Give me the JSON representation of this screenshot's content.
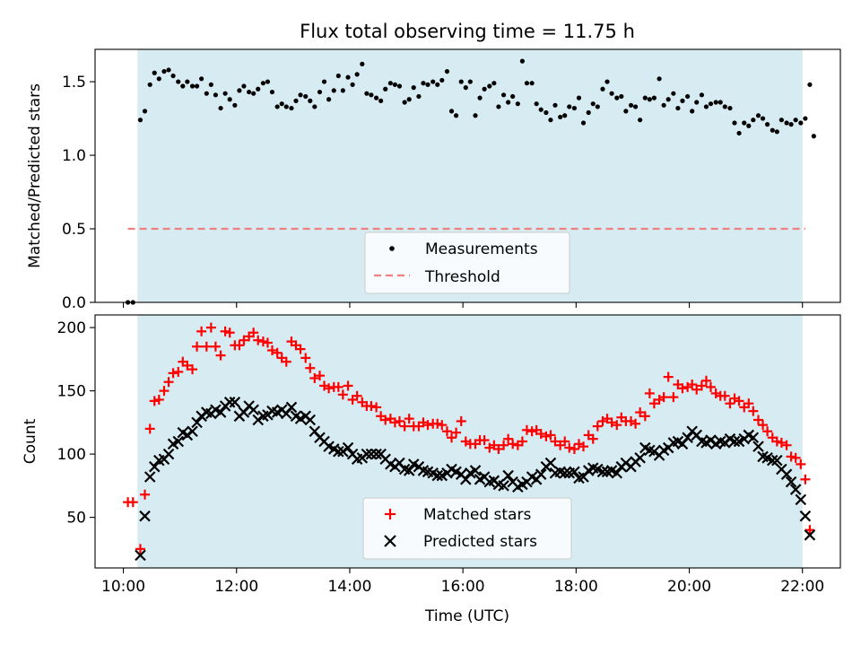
{
  "chart_data": [
    {
      "type": "scatter",
      "title": "Flux total observing time = 11.75 h",
      "ylabel": "Matched/Predicted stars",
      "xlim": [
        9.5,
        22.67
      ],
      "ylim": [
        0.0,
        1.72
      ],
      "yticks": [
        0.0,
        0.5,
        1.0,
        1.5
      ],
      "shaded_span": [
        10.25,
        22.0
      ],
      "shade_color": "#add8e6",
      "legend_position": "lower-center",
      "series": [
        {
          "name": "Measurements",
          "marker": "dot",
          "color": "#000000",
          "points": [
            [
              10.08,
              0.0
            ],
            [
              10.17,
              0.0
            ],
            [
              10.3,
              1.24
            ],
            [
              10.38,
              1.3
            ],
            [
              10.47,
              1.48
            ],
            [
              10.55,
              1.56
            ],
            [
              10.63,
              1.52
            ],
            [
              10.72,
              1.57
            ],
            [
              10.8,
              1.58
            ],
            [
              10.88,
              1.54
            ],
            [
              10.97,
              1.5
            ],
            [
              11.05,
              1.47
            ],
            [
              11.13,
              1.5
            ],
            [
              11.22,
              1.47
            ],
            [
              11.3,
              1.47
            ],
            [
              11.38,
              1.52
            ],
            [
              11.47,
              1.42
            ],
            [
              11.55,
              1.48
            ],
            [
              11.63,
              1.41
            ],
            [
              11.72,
              1.32
            ],
            [
              11.8,
              1.42
            ],
            [
              11.88,
              1.38
            ],
            [
              11.97,
              1.34
            ],
            [
              12.05,
              1.44
            ],
            [
              12.13,
              1.47
            ],
            [
              12.22,
              1.43
            ],
            [
              12.3,
              1.42
            ],
            [
              12.38,
              1.45
            ],
            [
              12.47,
              1.49
            ],
            [
              12.55,
              1.5
            ],
            [
              12.63,
              1.43
            ],
            [
              12.72,
              1.33
            ],
            [
              12.8,
              1.35
            ],
            [
              12.88,
              1.33
            ],
            [
              12.97,
              1.32
            ],
            [
              13.05,
              1.37
            ],
            [
              13.13,
              1.41
            ],
            [
              13.22,
              1.4
            ],
            [
              13.3,
              1.37
            ],
            [
              13.38,
              1.33
            ],
            [
              13.47,
              1.43
            ],
            [
              13.55,
              1.5
            ],
            [
              13.63,
              1.38
            ],
            [
              13.72,
              1.44
            ],
            [
              13.8,
              1.54
            ],
            [
              13.88,
              1.44
            ],
            [
              13.97,
              1.53
            ],
            [
              14.05,
              1.48
            ],
            [
              14.13,
              1.55
            ],
            [
              14.22,
              1.62
            ],
            [
              14.3,
              1.42
            ],
            [
              14.38,
              1.41
            ],
            [
              14.47,
              1.39
            ],
            [
              14.55,
              1.37
            ],
            [
              14.63,
              1.45
            ],
            [
              14.72,
              1.49
            ],
            [
              14.8,
              1.48
            ],
            [
              14.88,
              1.47
            ],
            [
              14.97,
              1.36
            ],
            [
              15.05,
              1.38
            ],
            [
              15.13,
              1.46
            ],
            [
              15.22,
              1.4
            ],
            [
              15.3,
              1.49
            ],
            [
              15.38,
              1.48
            ],
            [
              15.47,
              1.5
            ],
            [
              15.55,
              1.48
            ],
            [
              15.63,
              1.51
            ],
            [
              15.72,
              1.57
            ],
            [
              15.8,
              1.3
            ],
            [
              15.88,
              1.27
            ],
            [
              15.97,
              1.5
            ],
            [
              16.05,
              1.46
            ],
            [
              16.13,
              1.5
            ],
            [
              16.22,
              1.27
            ],
            [
              16.3,
              1.39
            ],
            [
              16.38,
              1.45
            ],
            [
              16.47,
              1.47
            ],
            [
              16.55,
              1.49
            ],
            [
              16.63,
              1.33
            ],
            [
              16.72,
              1.41
            ],
            [
              16.8,
              1.36
            ],
            [
              16.88,
              1.4
            ],
            [
              16.97,
              1.35
            ],
            [
              17.05,
              1.64
            ],
            [
              17.13,
              1.49
            ],
            [
              17.22,
              1.49
            ],
            [
              17.3,
              1.35
            ],
            [
              17.38,
              1.31
            ],
            [
              17.47,
              1.29
            ],
            [
              17.55,
              1.24
            ],
            [
              17.63,
              1.34
            ],
            [
              17.72,
              1.26
            ],
            [
              17.8,
              1.27
            ],
            [
              17.88,
              1.33
            ],
            [
              17.97,
              1.32
            ],
            [
              18.05,
              1.39
            ],
            [
              18.13,
              1.22
            ],
            [
              18.22,
              1.29
            ],
            [
              18.3,
              1.35
            ],
            [
              18.38,
              1.33
            ],
            [
              18.47,
              1.45
            ],
            [
              18.55,
              1.5
            ],
            [
              18.63,
              1.42
            ],
            [
              18.72,
              1.39
            ],
            [
              18.8,
              1.4
            ],
            [
              18.88,
              1.3
            ],
            [
              18.97,
              1.34
            ],
            [
              19.05,
              1.33
            ],
            [
              19.13,
              1.24
            ],
            [
              19.22,
              1.39
            ],
            [
              19.3,
              1.38
            ],
            [
              19.38,
              1.39
            ],
            [
              19.47,
              1.52
            ],
            [
              19.55,
              1.34
            ],
            [
              19.63,
              1.38
            ],
            [
              19.72,
              1.42
            ],
            [
              19.8,
              1.32
            ],
            [
              19.88,
              1.37
            ],
            [
              19.97,
              1.4
            ],
            [
              20.05,
              1.3
            ],
            [
              20.13,
              1.36
            ],
            [
              20.22,
              1.41
            ],
            [
              20.3,
              1.33
            ],
            [
              20.38,
              1.35
            ],
            [
              20.47,
              1.36
            ],
            [
              20.55,
              1.36
            ],
            [
              20.63,
              1.33
            ],
            [
              20.72,
              1.32
            ],
            [
              20.8,
              1.22
            ],
            [
              20.88,
              1.15
            ],
            [
              20.97,
              1.22
            ],
            [
              21.05,
              1.2
            ],
            [
              21.13,
              1.24
            ],
            [
              21.22,
              1.27
            ],
            [
              21.3,
              1.25
            ],
            [
              21.38,
              1.21
            ],
            [
              21.47,
              1.17
            ],
            [
              21.55,
              1.16
            ],
            [
              21.63,
              1.24
            ],
            [
              21.72,
              1.22
            ],
            [
              21.8,
              1.21
            ],
            [
              21.88,
              1.24
            ],
            [
              21.97,
              1.22
            ],
            [
              22.05,
              1.25
            ],
            [
              22.13,
              1.48
            ],
            [
              22.2,
              1.13
            ]
          ]
        },
        {
          "name": "Threshold",
          "style": "dashed",
          "color": "#f08080",
          "value": 0.5,
          "x_range": [
            10.08,
            22.05
          ]
        }
      ]
    },
    {
      "type": "scatter",
      "xlabel": "Time (UTC)",
      "ylabel": "Count",
      "xlim": [
        9.5,
        22.67
      ],
      "ylim": [
        10,
        210
      ],
      "yticks": [
        50,
        100,
        150,
        200
      ],
      "xticks": [
        10,
        12,
        14,
        16,
        18,
        20,
        22
      ],
      "xtick_labels": [
        "10:00",
        "12:00",
        "14:00",
        "16:00",
        "18:00",
        "20:00",
        "22:00"
      ],
      "shaded_span": [
        10.25,
        22.0
      ],
      "shade_color": "#add8e6",
      "legend_position": "lower-center",
      "x": [
        10.08,
        10.17,
        10.3,
        10.38,
        10.47,
        10.55,
        10.63,
        10.72,
        10.8,
        10.88,
        10.97,
        11.05,
        11.13,
        11.22,
        11.3,
        11.38,
        11.47,
        11.55,
        11.63,
        11.72,
        11.8,
        11.88,
        11.97,
        12.05,
        12.13,
        12.22,
        12.3,
        12.38,
        12.47,
        12.55,
        12.63,
        12.72,
        12.8,
        12.88,
        12.97,
        13.05,
        13.13,
        13.22,
        13.3,
        13.38,
        13.47,
        13.55,
        13.63,
        13.72,
        13.8,
        13.88,
        13.97,
        14.05,
        14.13,
        14.22,
        14.3,
        14.38,
        14.47,
        14.55,
        14.63,
        14.72,
        14.8,
        14.88,
        14.97,
        15.05,
        15.13,
        15.22,
        15.3,
        15.38,
        15.47,
        15.55,
        15.63,
        15.72,
        15.8,
        15.88,
        15.97,
        16.05,
        16.13,
        16.22,
        16.3,
        16.38,
        16.47,
        16.55,
        16.63,
        16.72,
        16.8,
        16.88,
        16.97,
        17.05,
        17.13,
        17.22,
        17.3,
        17.38,
        17.47,
        17.55,
        17.63,
        17.72,
        17.8,
        17.88,
        17.97,
        18.05,
        18.13,
        18.22,
        18.3,
        18.38,
        18.47,
        18.55,
        18.63,
        18.72,
        18.8,
        18.88,
        18.97,
        19.05,
        19.13,
        19.22,
        19.3,
        19.38,
        19.47,
        19.55,
        19.63,
        19.72,
        19.8,
        19.88,
        19.97,
        20.05,
        20.13,
        20.22,
        20.3,
        20.38,
        20.47,
        20.55,
        20.63,
        20.72,
        20.8,
        20.88,
        20.97,
        21.05,
        21.13,
        21.22,
        21.3,
        21.38,
        21.47,
        21.55,
        21.63,
        21.72,
        21.8,
        21.88,
        21.97,
        22.05,
        22.13
      ],
      "series": [
        {
          "name": "Matched stars",
          "marker": "plus",
          "color": "#ff0000",
          "values": [
            62,
            62,
            25,
            68,
            120,
            142,
            143,
            150,
            157,
            164,
            165,
            173,
            170,
            167,
            185,
            197,
            185,
            200,
            185,
            178,
            197,
            196,
            186,
            186,
            190,
            193,
            196,
            190,
            189,
            188,
            182,
            180,
            176,
            173,
            189,
            186,
            183,
            176,
            168,
            160,
            162,
            154,
            152,
            153,
            153,
            147,
            154,
            143,
            146,
            141,
            138,
            138,
            137,
            130,
            127,
            128,
            125,
            126,
            122,
            128,
            122,
            122,
            125,
            123,
            124,
            124,
            123,
            118,
            113,
            117,
            126,
            110,
            108,
            108,
            111,
            111,
            105,
            107,
            104,
            107,
            112,
            108,
            107,
            110,
            119,
            118,
            119,
            116,
            114,
            115,
            110,
            107,
            110,
            105,
            104,
            108,
            106,
            115,
            112,
            122,
            126,
            128,
            125,
            123,
            129,
            126,
            126,
            124,
            133,
            130,
            148,
            140,
            143,
            145,
            161,
            145,
            155,
            152,
            153,
            155,
            151,
            154,
            158,
            153,
            148,
            146,
            146,
            140,
            144,
            142,
            137,
            140,
            134,
            127,
            123,
            118,
            113,
            110,
            109,
            107,
            98,
            97,
            92,
            80,
            40
          ]
        },
        {
          "name": "Predicted stars",
          "marker": "x",
          "color": "#000000",
          "values": [
            null,
            null,
            20,
            51,
            82,
            90,
            95,
            96,
            100,
            108,
            110,
            117,
            115,
            118,
            125,
            130,
            133,
            132,
            135,
            133,
            138,
            141,
            141,
            130,
            133,
            138,
            135,
            127,
            130,
            131,
            134,
            133,
            135,
            132,
            137,
            130,
            128,
            130,
            127,
            118,
            113,
            110,
            106,
            104,
            102,
            102,
            105,
            100,
            96,
            97,
            100,
            100,
            100,
            100,
            96,
            92,
            90,
            93,
            88,
            87,
            92,
            90,
            87,
            86,
            85,
            83,
            83,
            85,
            88,
            86,
            84,
            80,
            85,
            87,
            80,
            82,
            78,
            79,
            76,
            75,
            83,
            78,
            74,
            76,
            78,
            82,
            80,
            84,
            90,
            93,
            85,
            86,
            85,
            85,
            86,
            81,
            82,
            87,
            89,
            88,
            86,
            86,
            87,
            85,
            90,
            93,
            90,
            94,
            97,
            105,
            103,
            102,
            99,
            103,
            105,
            109,
            110,
            108,
            113,
            118,
            115,
            110,
            109,
            111,
            108,
            110,
            109,
            112,
            110,
            110,
            112,
            115,
            113,
            106,
            98,
            97,
            95,
            95,
            88,
            84,
            78,
            72,
            64,
            51,
            36
          ]
        }
      ]
    }
  ]
}
